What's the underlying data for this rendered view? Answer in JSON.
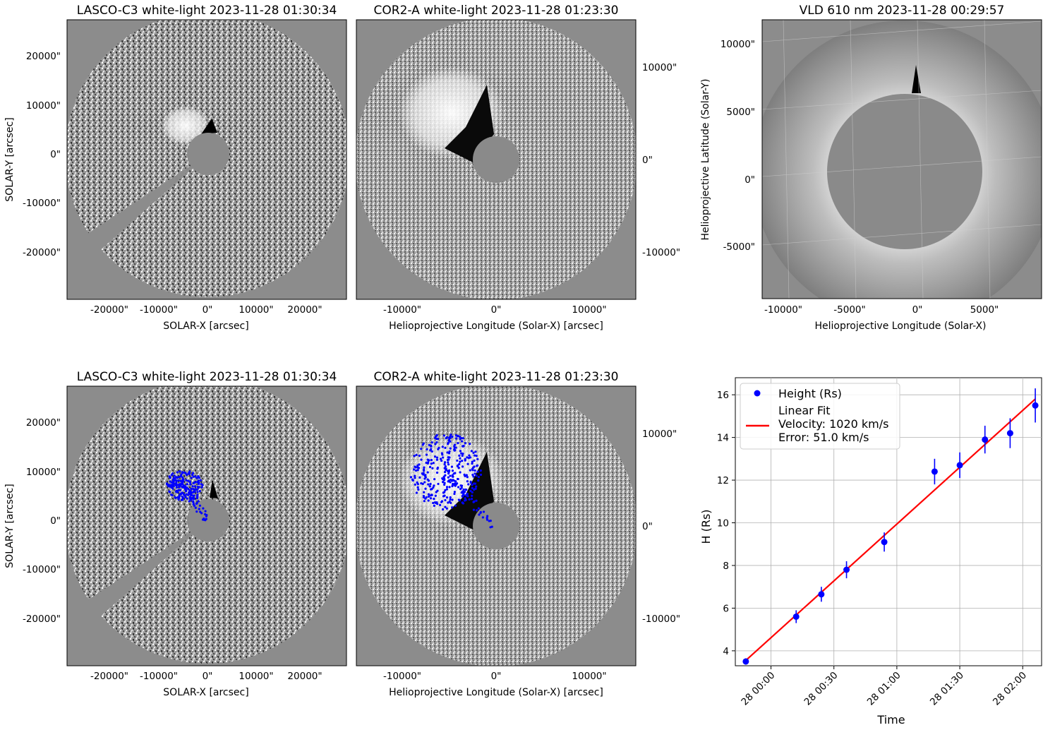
{
  "panels": {
    "top_lasco": {
      "title": "LASCO-C3 white-light 2023-11-28 01:30:34",
      "xlabel": "SOLAR-X [arcsec]",
      "ylabel": "SOLAR-Y [arcsec]",
      "xticks": [
        "-20000\"",
        "-10000\"",
        "0\"",
        "10000\"",
        "20000\""
      ],
      "yticks": [
        "20000\"",
        "10000\"",
        "0\"",
        "-10000\"",
        "-20000\""
      ]
    },
    "top_cor2": {
      "title": "COR2-A white-light 2023-11-28 01:23:30",
      "xlabel": "Helioprojective Longitude (Solar-X) [arcsec]",
      "xticks": [
        "-10000\"",
        "0\"",
        "10000\""
      ],
      "yticks_right": [
        "10000\"",
        "0\"",
        "-10000\""
      ]
    },
    "top_vld": {
      "title": "VLD 610 nm 2023-11-28 00:29:57",
      "xlabel": "Helioprojective Longitude (Solar-X)",
      "ylabel": "Helioprojective Latitude (Solar-Y)",
      "xticks": [
        "-10000\"",
        "-5000\"",
        "0\"",
        "5000\""
      ],
      "yticks": [
        "10000\"",
        "5000\"",
        "0\"",
        "-5000\""
      ]
    },
    "bottom_lasco": {
      "title": "LASCO-C3 white-light 2023-11-28 01:30:34",
      "xlabel": "SOLAR-X [arcsec]",
      "ylabel": "SOLAR-Y [arcsec]",
      "xticks": [
        "-20000\"",
        "-10000\"",
        "0\"",
        "10000\"",
        "20000\""
      ],
      "yticks": [
        "20000\"",
        "10000\"",
        "0\"",
        "-10000\"",
        "-20000\""
      ]
    },
    "bottom_cor2": {
      "title": "COR2-A white-light 2023-11-28 01:23:30",
      "xlabel": "Helioprojective Longitude (Solar-X) [arcsec]",
      "xticks": [
        "-10000\"",
        "0\"",
        "10000\""
      ],
      "yticks_right": [
        "10000\"",
        "0\"",
        "-10000\""
      ]
    }
  },
  "colors": {
    "points": "#0000ff",
    "fit": "#ff0000",
    "image_bg": "#8c8c8c",
    "disk": "#8a8a8a"
  },
  "chart_data": {
    "type": "scatter",
    "xlabel": "Time",
    "ylabel": "H (Rs)",
    "grid": true,
    "legend_position": "top-left",
    "legend": {
      "points_label": "Height (Rs)",
      "fit_label": "Linear Fit\nVelocity: 1020 km/s\nError: 51.0 km/s"
    },
    "x_ticks": [
      "28 00:00",
      "28 00:30",
      "28 01:00",
      "28 01:30",
      "28 02:00"
    ],
    "y_ticks": [
      4,
      6,
      8,
      10,
      12,
      14,
      16
    ],
    "ylim": [
      3.3,
      16.8
    ],
    "xlim": [
      "2023-11-27 23:43",
      "2023-11-28 02:09"
    ],
    "series": [
      {
        "name": "Height (Rs)",
        "x": [
          "2023-11-27 23:48",
          "2023-11-28 00:12",
          "2023-11-28 00:24",
          "2023-11-28 00:36",
          "2023-11-28 00:54",
          "2023-11-28 01:18",
          "2023-11-28 01:30",
          "2023-11-28 01:42",
          "2023-11-28 01:54",
          "2023-11-28 02:06"
        ],
        "y": [
          3.5,
          5.6,
          6.65,
          7.8,
          9.1,
          12.4,
          12.7,
          13.9,
          14.2,
          15.5
        ],
        "yerr": [
          0.15,
          0.3,
          0.35,
          0.4,
          0.45,
          0.6,
          0.6,
          0.65,
          0.7,
          0.8
        ]
      },
      {
        "name": "Linear Fit",
        "x": [
          "2023-11-27 23:48",
          "2023-11-28 02:06"
        ],
        "y": [
          3.55,
          15.8
        ]
      }
    ]
  }
}
